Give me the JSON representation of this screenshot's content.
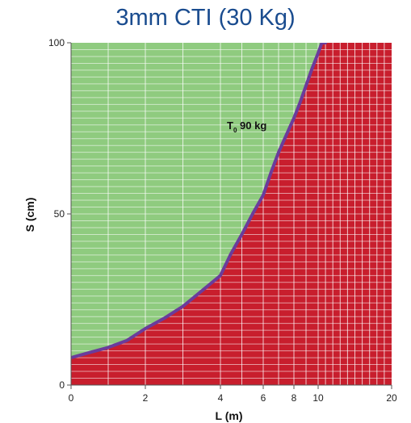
{
  "colors": {
    "title": "#1a4c8f",
    "safe_region": "#8fcb7f",
    "unsafe_region": "#c81e2d",
    "curve": "#6a3c9c",
    "grid": "#ffffff",
    "axis": "#555555"
  },
  "chart_data": {
    "type": "area",
    "title": "3mm CTI (30 Kg)",
    "xlabel": "L (m)",
    "ylabel": "S (cm)",
    "xlim": [
      0,
      20
    ],
    "ylim": [
      0,
      100
    ],
    "x_scale": "nonlinear (expanded spacing at small L)",
    "x_ticks": [
      0,
      2,
      4,
      6,
      8,
      10,
      20
    ],
    "x_tick_labels": [
      "0",
      "2",
      "4",
      "6",
      "8",
      "10",
      "20"
    ],
    "y_ticks": [
      0,
      50,
      100
    ],
    "y_tick_labels": [
      "0",
      "50",
      "100"
    ],
    "grid": true,
    "regions": [
      {
        "label": "",
        "color": "#8fcb7f",
        "position": "above curve"
      },
      {
        "label": "",
        "color": "#c81e2d",
        "position": "below curve"
      }
    ],
    "series": [
      {
        "name": "T0 90 kg",
        "label_main": "T",
        "label_sub": "0",
        "label_rest": " 90 kg",
        "x": [
          0,
          0.5,
          1,
          1.5,
          2,
          2.5,
          3,
          3.5,
          4,
          4.5,
          5,
          5.5,
          6,
          6.5,
          7,
          7.5,
          8,
          8.5,
          9,
          9.5,
          10,
          10.5,
          11
        ],
        "y": [
          8,
          9.5,
          11,
          13,
          16.5,
          19.5,
          23,
          27.5,
          32,
          38.5,
          44,
          50,
          55.5,
          62,
          68,
          73,
          78,
          82.5,
          87.5,
          92.5,
          97,
          100,
          100
        ]
      }
    ]
  }
}
